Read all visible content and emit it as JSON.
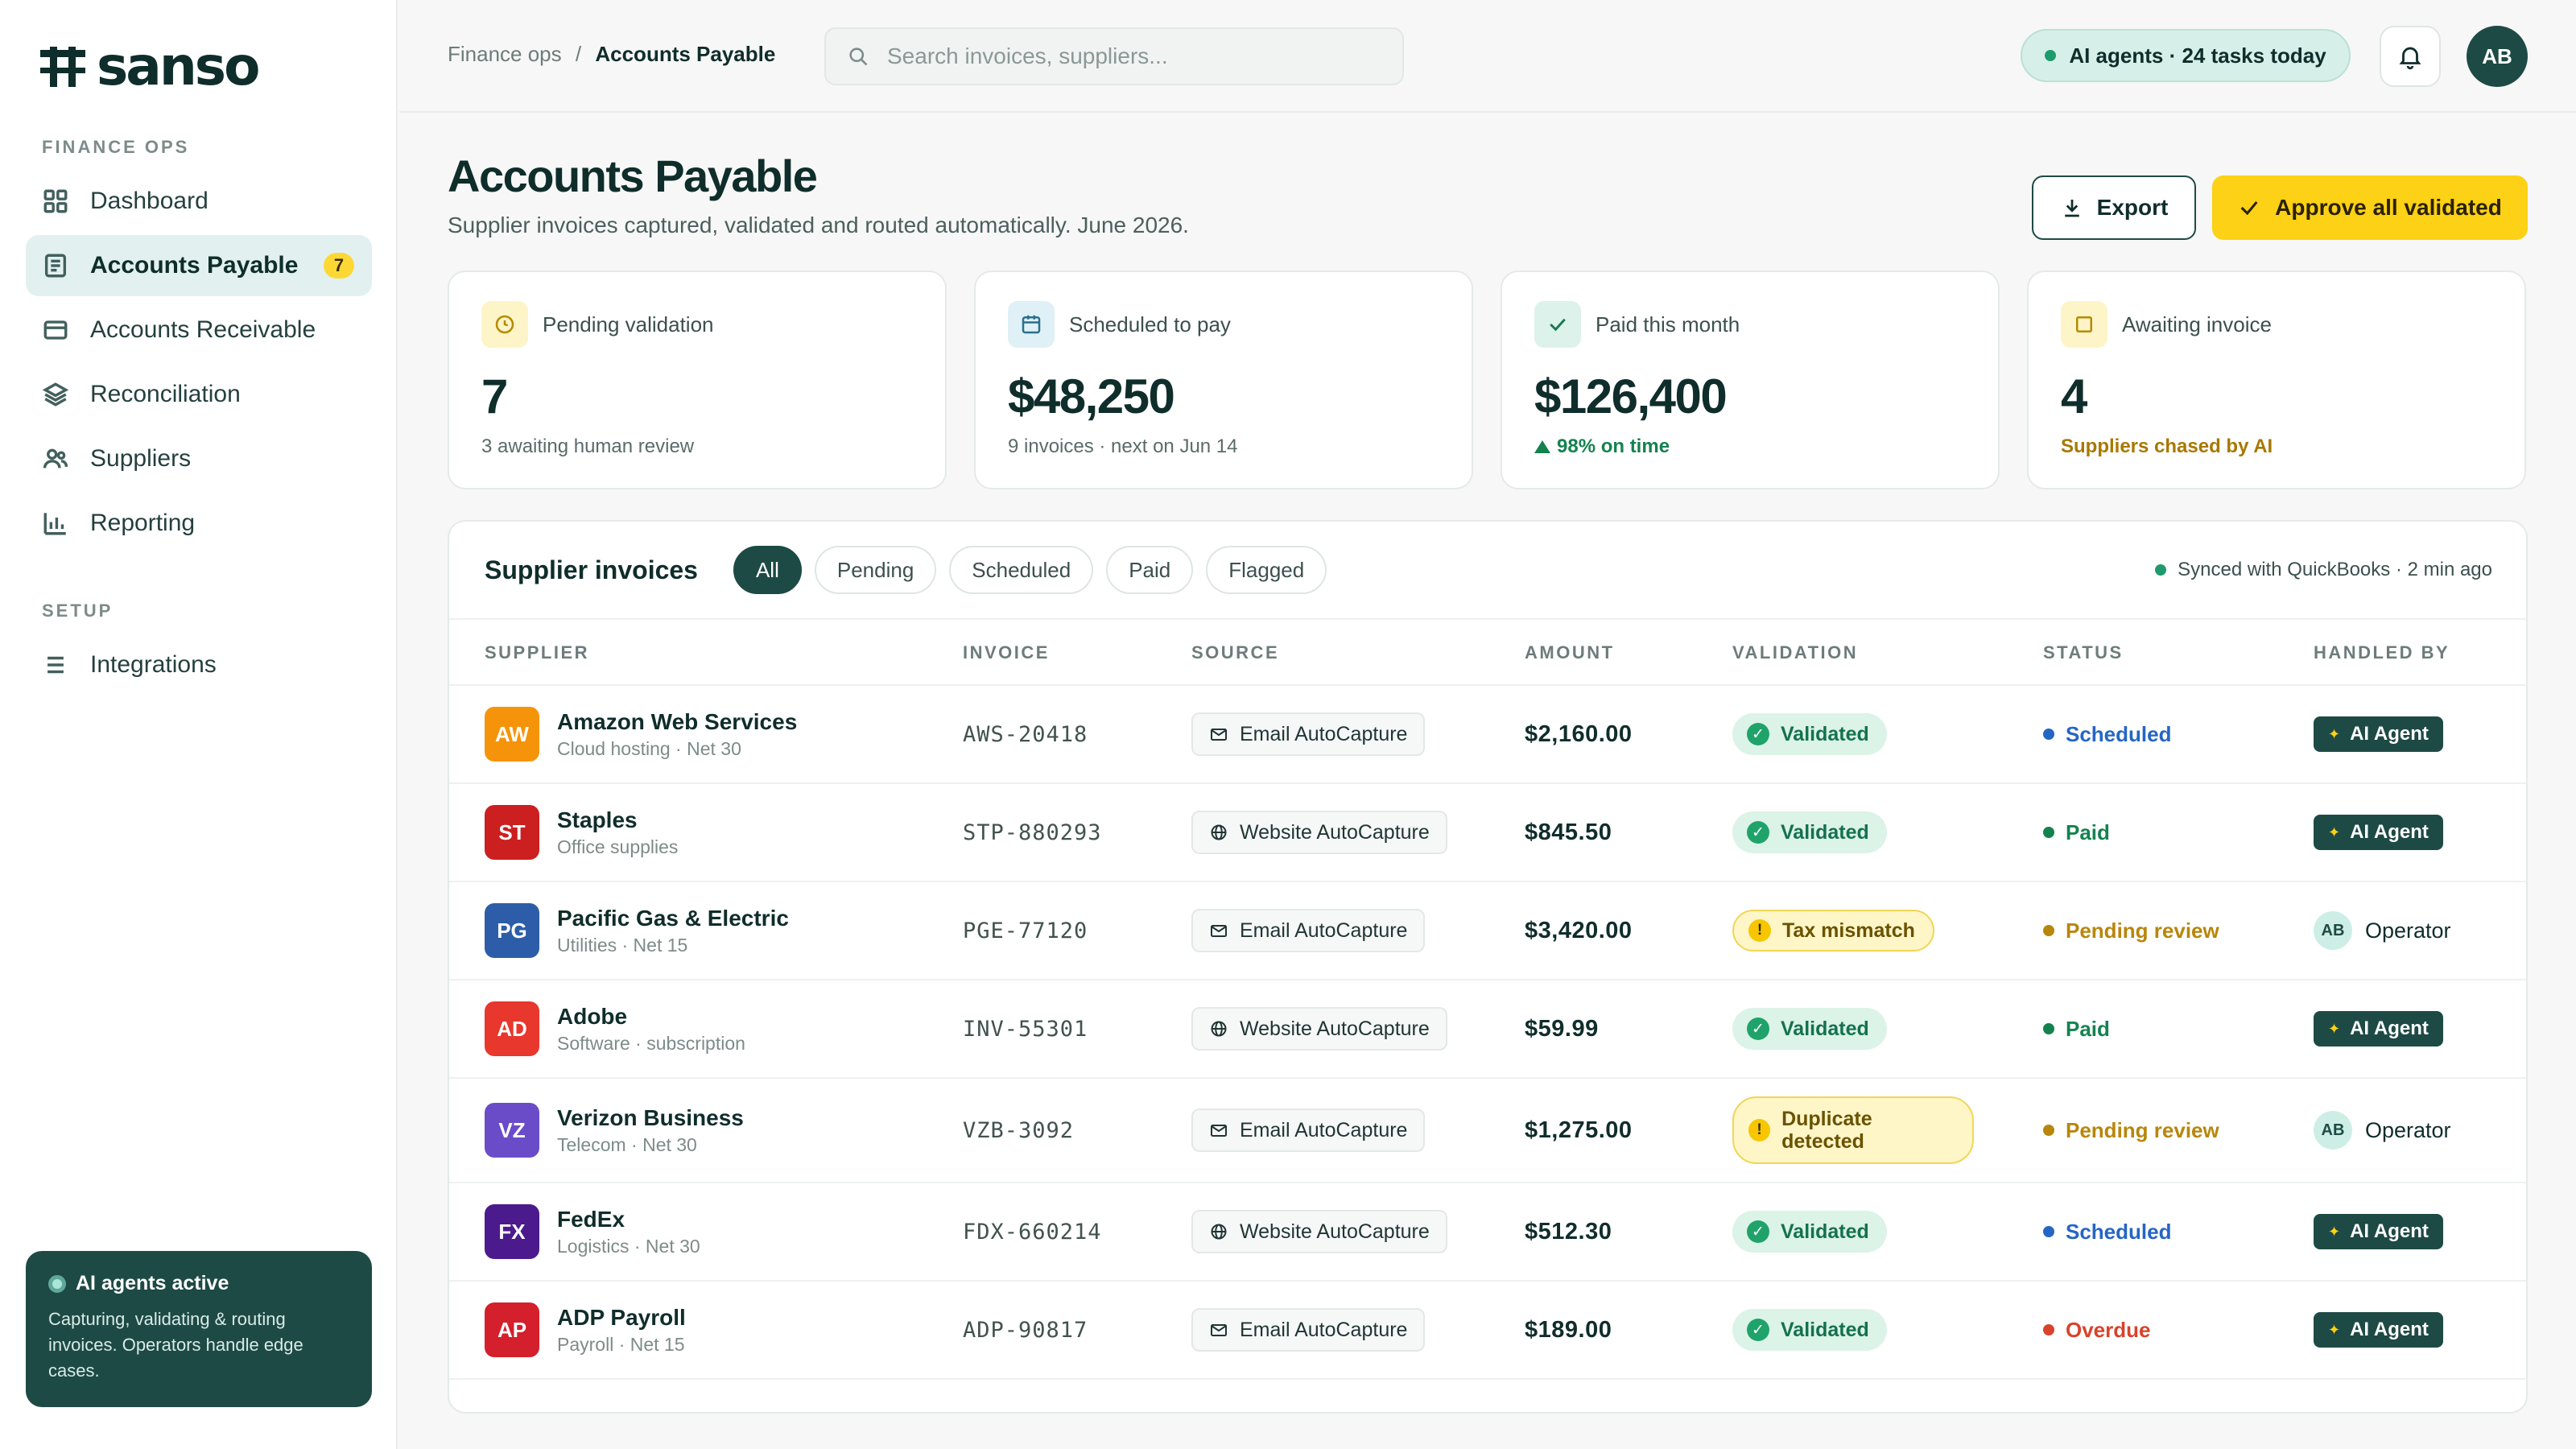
{
  "brand": {
    "name": "sanso"
  },
  "sidebar": {
    "sections": [
      {
        "label": "FINANCE OPS"
      },
      {
        "label": "SETUP"
      }
    ],
    "items": [
      {
        "label": "Dashboard",
        "icon": "grid-icon"
      },
      {
        "label": "Accounts Payable",
        "icon": "document-icon",
        "badge": "7",
        "active": true
      },
      {
        "label": "Accounts Receivable",
        "icon": "card-icon"
      },
      {
        "label": "Reconciliation",
        "icon": "layers-icon"
      },
      {
        "label": "Suppliers",
        "icon": "users-icon"
      },
      {
        "label": "Reporting",
        "icon": "bar-chart-icon"
      },
      {
        "label": "Integrations",
        "icon": "list-icon"
      }
    ],
    "agent_card": {
      "title": "AI agents active",
      "description": "Capturing, validating & routing invoices. Operators handle edge cases."
    }
  },
  "topbar": {
    "breadcrumb": {
      "parent": "Finance ops",
      "separator": "/",
      "current": "Accounts Payable"
    },
    "search": {
      "placeholder": "Search invoices, suppliers...",
      "value": ""
    },
    "ai_status": "AI agents · 24 tasks today",
    "user_initials": "AB"
  },
  "header": {
    "title": "Accounts Payable",
    "subtitle": "Supplier invoices captured, validated and routed automatically. June 2026.",
    "export_label": "Export",
    "approve_label": "Approve all validated"
  },
  "stats": [
    {
      "label": "Pending validation",
      "value": "7",
      "note": "3 awaiting human review",
      "icon": "clock-icon"
    },
    {
      "label": "Scheduled to pay",
      "value": "$48,250",
      "note": "9 invoices · next on Jun 14",
      "icon": "calendar-icon"
    },
    {
      "label": "Paid this month",
      "value": "$126,400",
      "note": "98% on time",
      "icon": "check-icon"
    },
    {
      "label": "Awaiting invoice",
      "value": "4",
      "note": "Suppliers chased by AI",
      "icon": "square-icon"
    }
  ],
  "table": {
    "title": "Supplier invoices",
    "filters": [
      "All",
      "Pending",
      "Scheduled",
      "Paid",
      "Flagged"
    ],
    "active_filter": "All",
    "sync_status": "Synced with QuickBooks · 2 min ago",
    "columns": [
      "SUPPLIER",
      "INVOICE",
      "SOURCE",
      "AMOUNT",
      "VALIDATION",
      "STATUS",
      "HANDLED BY"
    ],
    "rows": [
      {
        "initials": "AW",
        "color": "#f5940a",
        "supplier": "Amazon Web Services",
        "detail": "Cloud hosting · Net 30",
        "invoice": "AWS-20418",
        "source": "Email AutoCapture",
        "source_icon": "mail-icon",
        "amount": "$2,160.00",
        "validation": "Validated",
        "validation_type": "ok",
        "status": "Scheduled",
        "status_color": "#2566c4",
        "handler": "AI Agent",
        "handler_type": "agent"
      },
      {
        "initials": "ST",
        "color": "#cc1f1f",
        "supplier": "Staples",
        "detail": "Office supplies",
        "invoice": "STP-880293",
        "source": "Website AutoCapture",
        "source_icon": "globe-icon",
        "amount": "$845.50",
        "validation": "Validated",
        "validation_type": "ok",
        "status": "Paid",
        "status_color": "#14824f",
        "handler": "AI Agent",
        "handler_type": "agent"
      },
      {
        "initials": "PG",
        "color": "#2d5da8",
        "supplier": "Pacific Gas & Electric",
        "detail": "Utilities · Net 15",
        "invoice": "PGE-77120",
        "source": "Email AutoCapture",
        "source_icon": "mail-icon",
        "amount": "$3,420.00",
        "validation": "Tax mismatch",
        "validation_type": "warn",
        "status": "Pending review",
        "status_color": "#b8860b",
        "handler": "Operator",
        "handler_initials": "AB",
        "handler_type": "operator"
      },
      {
        "initials": "AD",
        "color": "#e8372c",
        "supplier": "Adobe",
        "detail": "Software · subscription",
        "invoice": "INV-55301",
        "source": "Website AutoCapture",
        "source_icon": "globe-icon",
        "amount": "$59.99",
        "validation": "Validated",
        "validation_type": "ok",
        "status": "Paid",
        "status_color": "#14824f",
        "handler": "AI Agent",
        "handler_type": "agent"
      },
      {
        "initials": "VZ",
        "color": "#6a4cc9",
        "supplier": "Verizon Business",
        "detail": "Telecom · Net 30",
        "invoice": "VZB-3092",
        "source": "Email AutoCapture",
        "source_icon": "mail-icon",
        "amount": "$1,275.00",
        "validation": "Duplicate detected",
        "validation_type": "warn",
        "status": "Pending review",
        "status_color": "#b8860b",
        "handler": "Operator",
        "handler_initials": "AB",
        "handler_type": "operator"
      },
      {
        "initials": "FX",
        "color": "#4b1a8c",
        "supplier": "FedEx",
        "detail": "Logistics · Net 30",
        "invoice": "FDX-660214",
        "source": "Website AutoCapture",
        "source_icon": "globe-icon",
        "amount": "$512.30",
        "validation": "Validated",
        "validation_type": "ok",
        "status": "Scheduled",
        "status_color": "#2566c4",
        "handler": "AI Agent",
        "handler_type": "agent"
      },
      {
        "initials": "AP",
        "color": "#d3202c",
        "supplier": "ADP Payroll",
        "detail": "Payroll · Net 15",
        "invoice": "ADP-90817",
        "source": "Email AutoCapture",
        "source_icon": "mail-icon",
        "amount": "$189.00",
        "validation": "Validated",
        "validation_type": "ok",
        "status": "Overdue",
        "status_color": "#d8432b",
        "handler": "AI Agent",
        "handler_type": "agent"
      }
    ]
  },
  "colors": {
    "primary": "#1e4a45",
    "accent": "#fcd116",
    "success": "#1fa36b",
    "warning": "#f7c600"
  }
}
